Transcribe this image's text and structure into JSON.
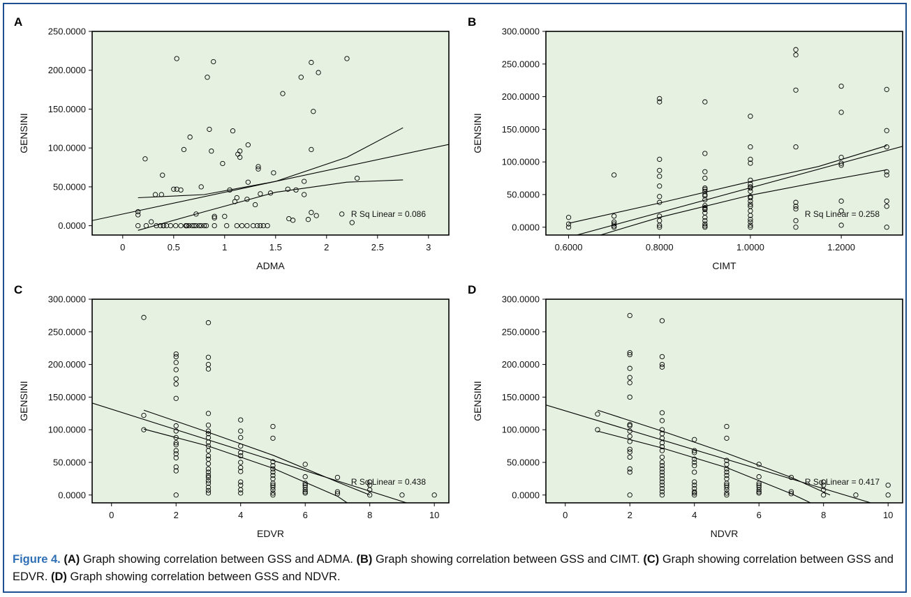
{
  "caption": {
    "figure_label": "Figure 4.",
    "parts": [
      {
        "tag": "(A)",
        "text": " Graph showing correlation between GSS and ADMA. "
      },
      {
        "tag": "(B)",
        "text": " Graph showing correlation between GSS and CIMT. "
      },
      {
        "tag": "(C)",
        "text": " Graph showing correlation between GSS and EDVR. "
      },
      {
        "tag": "(D)",
        "text": " Graph showing correlation between GSS and NDVR."
      }
    ]
  },
  "colors": {
    "plot_bg": "#e6f1e1",
    "frame_border": "#1d4f91",
    "caption_accent": "#2e6fb5",
    "marks": "#000000"
  },
  "chart_data": [
    {
      "panel": "A",
      "type": "scatter",
      "xlabel": "ADMA",
      "ylabel": "GENSINI",
      "xlim": [
        -0.3,
        3.2
      ],
      "ylim": [
        -12,
        250
      ],
      "xticks": [
        0,
        0.5,
        1,
        1.5,
        2,
        2.5,
        3
      ],
      "xtick_labels": [
        "0",
        "0.5",
        "1",
        "1.5",
        "2",
        "2.5",
        "3"
      ],
      "yticks": [
        0,
        50,
        100,
        150,
        200,
        250
      ],
      "ytick_labels": [
        "0.0000",
        "50.0000",
        "100.0000",
        "150.0000",
        "200.0000",
        "250.0000"
      ],
      "r_sq_label": "R Sq Linear = 0.086",
      "fit": {
        "intercept": 15,
        "slope": 28
      },
      "ci_upper": [
        [
          0.15,
          36
        ],
        [
          0.8,
          40
        ],
        [
          1.5,
          57
        ],
        [
          2.2,
          88
        ],
        [
          2.75,
          126
        ]
      ],
      "ci_lower": [
        [
          0.15,
          -6
        ],
        [
          0.8,
          18
        ],
        [
          1.5,
          43
        ],
        [
          2.2,
          56
        ],
        [
          2.75,
          59
        ]
      ],
      "x": [
        0.53,
        0.89,
        0.83,
        1.85,
        2.2,
        1.92,
        1.75,
        1.57,
        1.87,
        0.85,
        1.08,
        0.66,
        0.22,
        0.6,
        1.23,
        1.85,
        0.87,
        1.15,
        1.33,
        1.33,
        0.98,
        1.13,
        1.15,
        0.39,
        1.48,
        1.23,
        1.62,
        1.7,
        1.78,
        2.3,
        1.05,
        0.77,
        0.5,
        0.53,
        0.57,
        0.32,
        0.38,
        1.35,
        1.12,
        1.1,
        1.22,
        0.9,
        1.0,
        1.45,
        0.15,
        0.15,
        1.9,
        1.85,
        1.82,
        1.63,
        1.67,
        1.78,
        2.15,
        2.25,
        1.3,
        0.72,
        0.28,
        0.9,
        0.62,
        0.63,
        0.8,
        0.15,
        0.23,
        0.33,
        0.37,
        0.4,
        0.43,
        0.47,
        0.52,
        0.57,
        0.62,
        0.65,
        0.68,
        0.7,
        0.72,
        0.75,
        0.77,
        0.82,
        0.9,
        1.02,
        1.12,
        1.17,
        1.22,
        1.28,
        1.32,
        1.35,
        1.38,
        1.42,
        0.4
      ],
      "y": [
        215,
        211,
        191,
        210,
        215,
        197,
        191,
        170,
        147,
        124,
        122,
        114,
        86,
        98,
        104,
        98,
        96,
        96,
        76,
        73,
        80,
        92,
        88,
        65,
        68,
        56,
        47,
        46,
        40,
        61,
        46,
        50,
        47,
        47,
        46,
        40,
        40,
        41,
        36,
        31,
        34,
        12,
        12,
        42,
        18,
        14,
        13,
        17,
        8,
        9,
        7,
        57,
        15,
        4,
        27,
        15,
        5,
        10,
        0,
        0,
        0,
        0,
        0,
        0,
        0,
        0,
        0,
        0,
        0,
        0,
        0,
        0,
        0,
        0,
        0,
        0,
        0,
        0,
        0,
        0,
        0,
        0,
        0,
        0,
        0,
        0,
        0,
        0,
        0
      ]
    },
    {
      "panel": "B",
      "type": "scatter",
      "xlabel": "CIMT",
      "ylabel": "GENSINI",
      "xlim": [
        0.55,
        1.335
      ],
      "ylim": [
        -12,
        300
      ],
      "xticks": [
        0.6,
        0.8,
        1.0,
        1.2
      ],
      "xtick_labels": [
        "0.6000",
        "0.8000",
        "1.0000",
        "1.2000"
      ],
      "yticks": [
        0,
        50,
        100,
        150,
        200,
        250,
        300
      ],
      "ytick_labels": [
        "0.0000",
        "50.0000",
        "100.0000",
        "150.0000",
        "200.0000",
        "250.0000",
        "300.0000"
      ],
      "r_sq_label": "R Sq Linear = 0.258",
      "fit": {
        "intercept": -129.2,
        "slope": 189.6
      },
      "ci_upper": [
        [
          0.6,
          6
        ],
        [
          0.8,
          37
        ],
        [
          1.0,
          70
        ],
        [
          1.15,
          93
        ],
        [
          1.3,
          125
        ]
      ],
      "ci_lower": [
        [
          0.67,
          -12
        ],
        [
          0.8,
          15
        ],
        [
          1.0,
          49
        ],
        [
          1.15,
          69
        ],
        [
          1.3,
          88
        ]
      ],
      "x": [
        0.6,
        0.6,
        0.6,
        0.7,
        0.7,
        0.7,
        0.7,
        0.7,
        0.7,
        0.8,
        0.8,
        0.8,
        0.8,
        0.8,
        0.8,
        0.8,
        0.8,
        0.8,
        0.8,
        0.8,
        0.8,
        0.9,
        0.9,
        0.9,
        0.9,
        0.9,
        0.9,
        0.9,
        0.9,
        0.9,
        0.9,
        0.9,
        0.9,
        0.9,
        0.9,
        0.9,
        0.9,
        0.9,
        0.9,
        0.9,
        0.9,
        1.0,
        1.0,
        1.0,
        1.0,
        1.0,
        1.0,
        1.0,
        1.0,
        1.0,
        1.0,
        1.0,
        1.0,
        1.0,
        1.0,
        1.0,
        1.0,
        1.0,
        1.0,
        1.0,
        1.0,
        1.1,
        1.1,
        1.1,
        1.1,
        1.1,
        1.1,
        1.1,
        1.1,
        1.1,
        1.2,
        1.2,
        1.2,
        1.2,
        1.2,
        1.2,
        1.2,
        1.2,
        1.3,
        1.3,
        1.3,
        1.3,
        1.3,
        1.3,
        1.3,
        1.3
      ],
      "y": [
        15,
        5,
        0,
        80,
        17,
        8,
        5,
        2,
        0,
        197,
        192,
        104,
        87,
        78,
        63,
        47,
        38,
        17,
        10,
        3,
        0,
        192,
        113,
        85,
        75,
        60,
        55,
        48,
        42,
        33,
        28,
        22,
        15,
        10,
        5,
        2,
        0,
        58,
        50,
        30,
        27,
        170,
        123,
        104,
        98,
        72,
        66,
        60,
        55,
        47,
        40,
        32,
        25,
        18,
        12,
        8,
        3,
        0,
        62,
        45,
        35,
        272,
        264,
        210,
        123,
        38,
        32,
        28,
        10,
        0,
        216,
        176,
        107,
        98,
        95,
        40,
        25,
        3,
        211,
        148,
        123,
        85,
        80,
        40,
        32,
        0
      ]
    },
    {
      "panel": "C",
      "type": "scatter",
      "xlabel": "EDVR",
      "ylabel": "GENSINI",
      "xlim": [
        -0.6,
        10.45
      ],
      "ylim": [
        -12,
        300
      ],
      "xticks": [
        0,
        2,
        4,
        6,
        8,
        10
      ],
      "xtick_labels": [
        "0",
        "2",
        "4",
        "6",
        "8",
        "10"
      ],
      "yticks": [
        0,
        50,
        100,
        150,
        200,
        250,
        300
      ],
      "ytick_labels": [
        "0.0000",
        "50.0000",
        "100.0000",
        "150.0000",
        "200.0000",
        "250.0000",
        "300.0000"
      ],
      "r_sq_label": "R Sq Linear = 0.438",
      "fit": {
        "intercept": 131.5,
        "slope": -15.7
      },
      "ci_upper": [
        [
          1,
          130
        ],
        [
          3,
          96
        ],
        [
          5,
          61
        ],
        [
          7,
          20
        ],
        [
          8,
          0
        ]
      ],
      "ci_lower": [
        [
          1,
          101
        ],
        [
          3,
          75
        ],
        [
          5,
          41
        ],
        [
          7,
          -2
        ],
        [
          7.3,
          -12
        ]
      ],
      "x": [
        1,
        1,
        1,
        2,
        2,
        2,
        2,
        2,
        2,
        2,
        2,
        2,
        2,
        2,
        2,
        2,
        2,
        2,
        2,
        2,
        2,
        3,
        3,
        3,
        3,
        3,
        3,
        3,
        3,
        3,
        3,
        3,
        3,
        3,
        3,
        3,
        3,
        3,
        3,
        3,
        3,
        3,
        3,
        3,
        3,
        4,
        4,
        4,
        4,
        4,
        4,
        4,
        4,
        4,
        4,
        4,
        4,
        4,
        5,
        5,
        5,
        5,
        5,
        5,
        5,
        5,
        5,
        5,
        5,
        5,
        5,
        5,
        6,
        6,
        6,
        6,
        6,
        6,
        6,
        6,
        7,
        7,
        7,
        8,
        8,
        8,
        8,
        9,
        10
      ],
      "y": [
        272,
        122,
        100,
        216,
        212,
        203,
        192,
        178,
        170,
        148,
        106,
        98,
        88,
        80,
        77,
        68,
        63,
        57,
        43,
        37,
        0,
        264,
        211,
        200,
        193,
        125,
        107,
        98,
        94,
        88,
        81,
        75,
        68,
        60,
        55,
        48,
        40,
        35,
        30,
        27,
        22,
        18,
        12,
        7,
        3,
        115,
        98,
        88,
        75,
        65,
        60,
        50,
        42,
        36,
        20,
        15,
        8,
        3,
        105,
        87,
        51,
        45,
        40,
        35,
        30,
        25,
        18,
        15,
        12,
        8,
        3,
        0,
        47,
        28,
        18,
        15,
        12,
        8,
        5,
        3,
        27,
        5,
        2,
        20,
        15,
        8,
        0,
        0,
        0
      ]
    },
    {
      "panel": "D",
      "type": "scatter",
      "xlabel": "NDVR",
      "ylabel": "GENSINI",
      "xlim": [
        -0.6,
        10.45
      ],
      "ylim": [
        -12,
        300
      ],
      "xticks": [
        0,
        2,
        4,
        6,
        8,
        10
      ],
      "xtick_labels": [
        "0",
        "2",
        "4",
        "6",
        "8",
        "10"
      ],
      "yticks": [
        0,
        50,
        100,
        150,
        200,
        250,
        300
      ],
      "ytick_labels": [
        "0.0000",
        "50.0000",
        "100.0000",
        "150.0000",
        "200.0000",
        "250.0000",
        "300.0000"
      ],
      "r_sq_label": "R Sq Linear = 0.417",
      "fit": {
        "intercept": 129,
        "slope": -14.9
      },
      "ci_upper": [
        [
          1,
          130
        ],
        [
          3,
          98
        ],
        [
          5,
          64
        ],
        [
          7,
          27
        ],
        [
          8.2,
          0
        ]
      ],
      "ci_lower": [
        [
          1,
          98
        ],
        [
          3,
          72
        ],
        [
          5,
          42
        ],
        [
          7,
          2
        ],
        [
          7.6,
          -12
        ]
      ],
      "x": [
        1,
        1,
        2,
        2,
        2,
        2,
        2,
        2,
        2,
        2,
        2,
        2,
        2,
        2,
        2,
        2,
        2,
        2,
        2,
        2,
        3,
        3,
        3,
        3,
        3,
        3,
        3,
        3,
        3,
        3,
        3,
        3,
        3,
        3,
        3,
        3,
        3,
        3,
        3,
        3,
        3,
        3,
        3,
        3,
        4,
        4,
        4,
        4,
        4,
        4,
        4,
        4,
        4,
        4,
        4,
        4,
        4,
        5,
        5,
        5,
        5,
        5,
        5,
        5,
        5,
        5,
        5,
        5,
        5,
        5,
        5,
        6,
        6,
        6,
        6,
        6,
        6,
        6,
        6,
        7,
        7,
        7,
        8,
        8,
        8,
        8,
        9,
        10,
        10
      ],
      "y": [
        124,
        100,
        275,
        218,
        215,
        194,
        180,
        172,
        150,
        106,
        98,
        90,
        82,
        70,
        66,
        58,
        40,
        35,
        0,
        108,
        267,
        212,
        200,
        196,
        126,
        114,
        100,
        94,
        87,
        80,
        74,
        68,
        58,
        50,
        45,
        40,
        35,
        30,
        25,
        20,
        15,
        10,
        5,
        0,
        85,
        68,
        65,
        55,
        50,
        45,
        35,
        20,
        15,
        10,
        5,
        3,
        0,
        105,
        87,
        53,
        47,
        40,
        35,
        30,
        25,
        18,
        15,
        12,
        8,
        3,
        0,
        47,
        28,
        18,
        15,
        12,
        8,
        5,
        3,
        27,
        5,
        2,
        20,
        15,
        8,
        0,
        0,
        15,
        0
      ]
    }
  ]
}
